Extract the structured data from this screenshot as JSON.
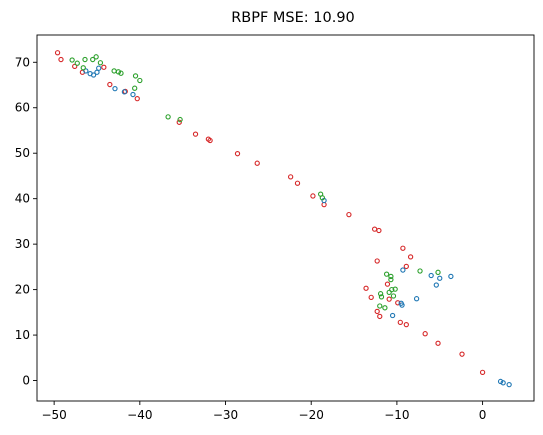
{
  "chart_data": {
    "type": "scatter",
    "title": "RBPF MSE: 10.90",
    "xlabel": "",
    "ylabel": "",
    "xlim": [
      -52,
      6
    ],
    "ylim": [
      -4.5,
      76
    ],
    "x_ticks": [
      -50,
      -40,
      -30,
      -20,
      -10,
      0
    ],
    "y_ticks": [
      0,
      10,
      20,
      30,
      40,
      50,
      60,
      70
    ],
    "grid": false,
    "legend": "none",
    "marker": "hollow-circle",
    "series": [
      {
        "color": "#d62728",
        "points": [
          [
            -49.6,
            72.1
          ],
          [
            -49.2,
            70.6
          ],
          [
            -47.6,
            69.1
          ],
          [
            -46.7,
            67.8
          ],
          [
            -44.2,
            68.9
          ],
          [
            -43.5,
            65.1
          ],
          [
            -41.7,
            63.6
          ],
          [
            -40.3,
            62.0
          ],
          [
            -35.4,
            56.8
          ],
          [
            -33.5,
            54.2
          ],
          [
            -32.0,
            53.1
          ],
          [
            -31.8,
            52.8
          ],
          [
            -28.6,
            49.9
          ],
          [
            -26.3,
            47.8
          ],
          [
            -22.4,
            44.8
          ],
          [
            -21.6,
            43.4
          ],
          [
            -19.8,
            40.6
          ],
          [
            -18.5,
            38.7
          ],
          [
            -15.6,
            36.5
          ],
          [
            -12.6,
            33.3
          ],
          [
            -12.1,
            33.0
          ],
          [
            -9.3,
            29.1
          ],
          [
            -8.4,
            27.2
          ],
          [
            -8.9,
            25.1
          ],
          [
            -12.3,
            26.3
          ],
          [
            -13.6,
            20.3
          ],
          [
            -13.0,
            18.3
          ],
          [
            -11.1,
            21.2
          ],
          [
            -12.3,
            15.2
          ],
          [
            -12.0,
            14.1
          ],
          [
            -10.9,
            17.9
          ],
          [
            -9.9,
            17.1
          ],
          [
            -9.6,
            12.8
          ],
          [
            -8.9,
            12.3
          ],
          [
            -6.7,
            10.3
          ],
          [
            -5.2,
            8.2
          ],
          [
            -2.4,
            5.8
          ],
          [
            0.0,
            1.8
          ]
        ]
      },
      {
        "color": "#1f77b4",
        "points": [
          [
            -46.3,
            68.1
          ],
          [
            -45.8,
            67.5
          ],
          [
            -45.4,
            67.2
          ],
          [
            -45.0,
            67.8
          ],
          [
            -44.8,
            68.7
          ],
          [
            -42.9,
            64.2
          ],
          [
            -41.8,
            63.5
          ],
          [
            -40.8,
            62.9
          ],
          [
            -18.5,
            39.6
          ],
          [
            -9.3,
            24.3
          ],
          [
            -6.0,
            23.1
          ],
          [
            -5.4,
            21.0
          ],
          [
            -5.0,
            22.5
          ],
          [
            -3.7,
            22.9
          ],
          [
            -7.7,
            18.0
          ],
          [
            -9.5,
            17.0
          ],
          [
            -9.4,
            16.6
          ],
          [
            -10.5,
            14.3
          ],
          [
            2.1,
            -0.2
          ],
          [
            2.4,
            -0.5
          ],
          [
            3.1,
            -0.9
          ]
        ]
      },
      {
        "color": "#2ca02c",
        "points": [
          [
            -47.9,
            70.5
          ],
          [
            -47.3,
            69.8
          ],
          [
            -46.4,
            70.6
          ],
          [
            -45.5,
            70.6
          ],
          [
            -45.1,
            71.2
          ],
          [
            -44.6,
            69.9
          ],
          [
            -46.6,
            68.8
          ],
          [
            -43.0,
            68.1
          ],
          [
            -42.5,
            67.9
          ],
          [
            -42.2,
            67.6
          ],
          [
            -40.5,
            67.0
          ],
          [
            -40.0,
            66.0
          ],
          [
            -40.6,
            64.3
          ],
          [
            -36.7,
            58.0
          ],
          [
            -35.3,
            57.4
          ],
          [
            -18.9,
            41.0
          ],
          [
            -18.7,
            40.2
          ],
          [
            -11.2,
            23.4
          ],
          [
            -10.7,
            22.9
          ],
          [
            -10.7,
            22.2
          ],
          [
            -7.3,
            24.1
          ],
          [
            -5.2,
            23.8
          ],
          [
            -10.6,
            20.0
          ],
          [
            -10.2,
            20.1
          ],
          [
            -10.9,
            19.4
          ],
          [
            -10.4,
            18.6
          ],
          [
            -11.9,
            19.1
          ],
          [
            -11.8,
            18.4
          ],
          [
            -12.0,
            16.4
          ],
          [
            -11.4,
            16.0
          ]
        ]
      }
    ]
  }
}
